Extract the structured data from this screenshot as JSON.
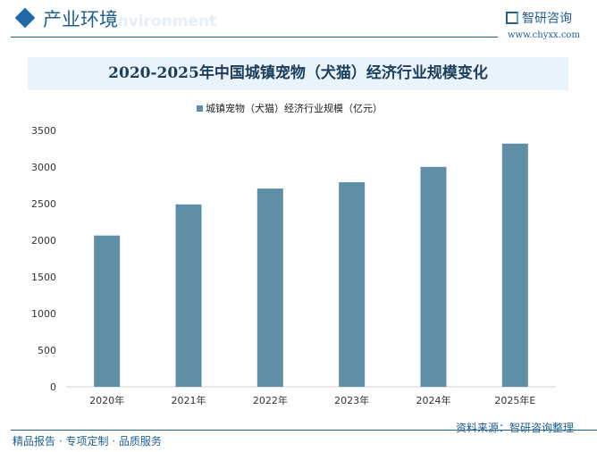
{
  "header": {
    "section_title": "产业环境",
    "section_subtitle": "environment",
    "brand": "智研咨询",
    "url": "www.chyxx.com",
    "brand_color": "#1f5f8f"
  },
  "footer": {
    "slogan": "精品报告 · 专项定制 · 品质服务",
    "source": "资料来源：智研咨询整理"
  },
  "chart_data": {
    "type": "bar",
    "title": "2020-2025年中国城镇宠物（犬猫）经济行业规模变化",
    "categories": [
      "2020年",
      "2021年",
      "2022年",
      "2023年",
      "2024年",
      "2025年E"
    ],
    "series": [
      {
        "name": "城镇宠物（犬猫）经济行业规模（亿元）",
        "values": [
          2065,
          2490,
          2706,
          2793,
          3002,
          3320
        ],
        "color": "#5e8fa6"
      }
    ],
    "ylim": [
      0,
      3500
    ],
    "yticks": [
      "0",
      "500",
      "1000",
      "1500",
      "2000",
      "2500",
      "3000",
      "3500"
    ],
    "grid": false,
    "legend": "top"
  }
}
